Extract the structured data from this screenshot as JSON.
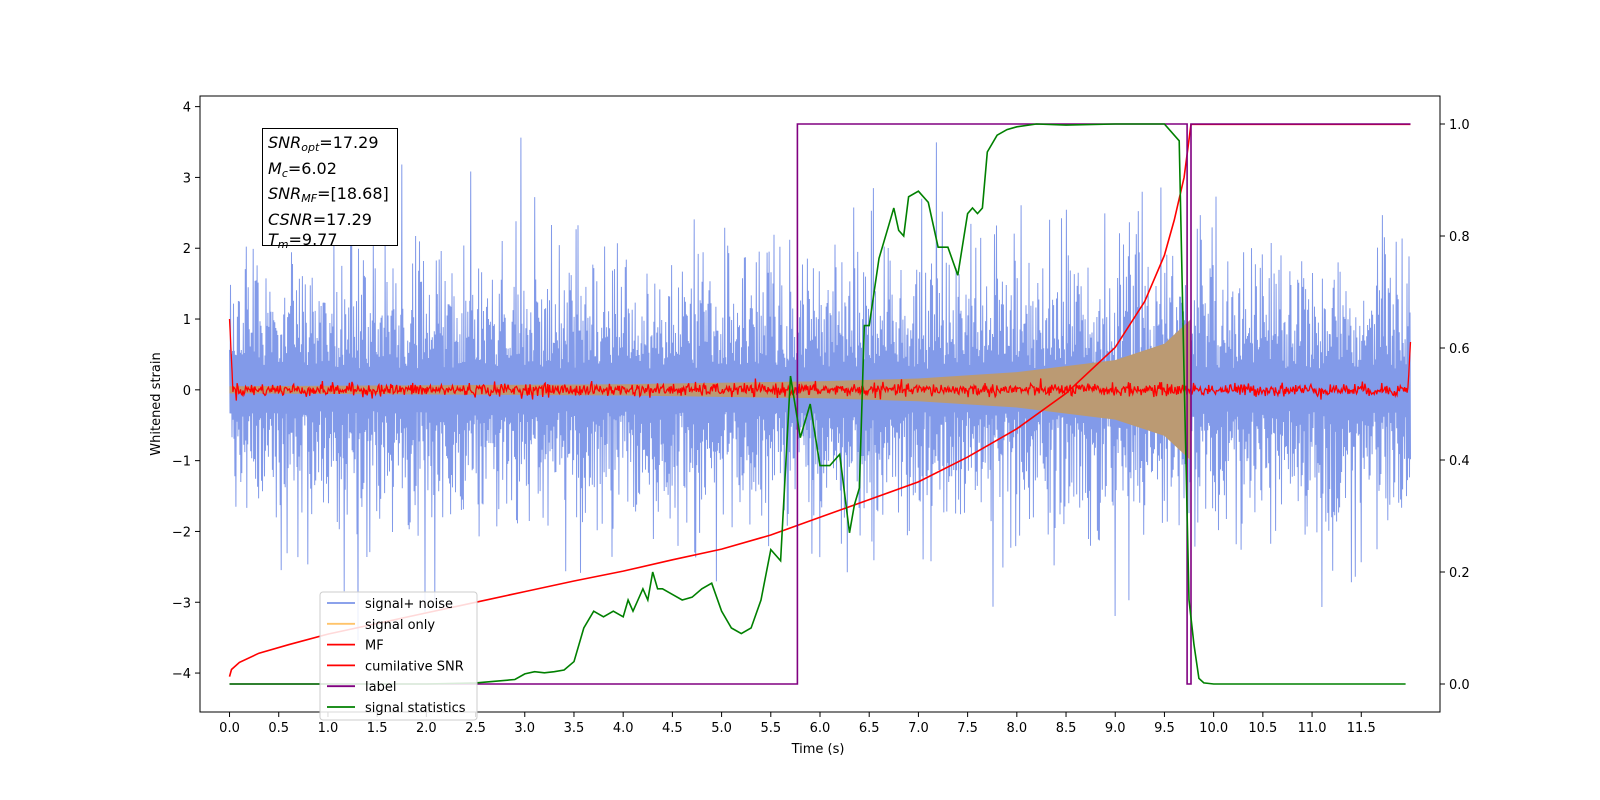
{
  "chart_data": {
    "type": "line",
    "xlabel": "Time (s)",
    "ylabel": "Whitened strain",
    "x_ticks": [
      "0.0",
      "0.5",
      "1.0",
      "1.5",
      "2.0",
      "2.5",
      "3.0",
      "3.5",
      "4.0",
      "4.5",
      "5.0",
      "5.5",
      "6.0",
      "6.5",
      "7.0",
      "7.5",
      "8.0",
      "8.5",
      "9.0",
      "9.5",
      "10.0",
      "10.5",
      "11.0",
      "11.5"
    ],
    "y_left_ticks": [
      "4",
      "3",
      "2",
      "1",
      "0",
      "−1",
      "−2",
      "−3",
      "−4"
    ],
    "y_right_ticks": [
      "1.0",
      "0.8",
      "0.6",
      "0.4",
      "0.2",
      "0.0"
    ],
    "xlim": [
      -0.3,
      12.3
    ],
    "ylim_left": [
      -4.55,
      4.15
    ],
    "ylim_right": [
      -0.05,
      1.05
    ],
    "legend_position": "lower-left",
    "legend": [
      {
        "name": "signal+ noise",
        "color": "#7b95e8"
      },
      {
        "name": "signal only",
        "color": "#ffc46a"
      },
      {
        "name": "MF",
        "color": "#ff0000"
      },
      {
        "name": "cumilative SNR",
        "color": "#ff0000"
      },
      {
        "name": "label",
        "color": "#800080"
      },
      {
        "name": "signal statistics",
        "color": "#008000"
      }
    ],
    "annotations": {
      "snr_opt": {
        "label": "SNR",
        "sub": "opt",
        "value": "=17.29"
      },
      "mc": {
        "label": "M",
        "sub": "c",
        "value": "=6.02"
      },
      "snr_mf": {
        "label": "SNR",
        "sub": "MF",
        "value": "=[18.68]"
      },
      "csnr": {
        "label": "CSNR",
        "value": "=17.29"
      },
      "tm": {
        "label": "T",
        "sub": "m",
        "value": "=9.77"
      }
    },
    "series": [
      {
        "name": "signal+ noise",
        "axis": "left",
        "description_type": "noise",
        "x_range": [
          0.0,
          12.0
        ],
        "typical_amplitude": [
          -1.9,
          2.3
        ],
        "peak_max": 3.75,
        "peak_min": -3.6
      },
      {
        "name": "signal only",
        "axis": "left",
        "description_type": "chirp_envelope",
        "x_range": [
          0.0,
          9.77
        ],
        "amplitude_points": [
          [
            0.0,
            0.05
          ],
          [
            4.0,
            0.08
          ],
          [
            6.0,
            0.12
          ],
          [
            7.0,
            0.16
          ],
          [
            8.0,
            0.25
          ],
          [
            9.0,
            0.42
          ],
          [
            9.5,
            0.65
          ],
          [
            9.77,
            1.0
          ]
        ]
      },
      {
        "name": "MF",
        "axis": "left",
        "description_type": "noise_small",
        "x_range": [
          0.0,
          12.0
        ],
        "typical_amplitude": [
          -0.12,
          0.15
        ],
        "edge_spikes": [
          [
            0.0,
            1.0
          ],
          [
            12.0,
            0.9
          ]
        ]
      },
      {
        "name": "cumilative SNR",
        "axis": "left",
        "x": [
          0.0,
          0.02,
          0.1,
          0.3,
          0.6,
          1.0,
          1.5,
          2.0,
          2.5,
          3.0,
          3.5,
          4.0,
          4.5,
          5.0,
          5.5,
          6.0,
          6.5,
          7.0,
          7.5,
          8.0,
          8.5,
          9.0,
          9.3,
          9.5,
          9.6,
          9.7,
          9.77,
          12.0
        ],
        "y": [
          -4.05,
          -3.95,
          -3.85,
          -3.72,
          -3.6,
          -3.45,
          -3.3,
          -3.15,
          -3.0,
          -2.85,
          -2.7,
          -2.56,
          -2.4,
          -2.25,
          -2.05,
          -1.8,
          -1.55,
          -1.3,
          -0.95,
          -0.55,
          -0.05,
          0.6,
          1.25,
          1.9,
          2.4,
          3.0,
          3.75,
          3.75
        ]
      },
      {
        "name": "label",
        "axis": "right",
        "x": [
          0.0,
          5.77,
          5.77,
          9.73,
          9.73,
          9.77,
          9.77,
          12.0
        ],
        "y": [
          0.0,
          0.0,
          1.0,
          1.0,
          0.0,
          0.0,
          1.0,
          1.0
        ]
      },
      {
        "name": "signal statistics",
        "axis": "right",
        "x": [
          0.0,
          1.0,
          2.0,
          2.5,
          2.9,
          3.0,
          3.1,
          3.2,
          3.3,
          3.4,
          3.5,
          3.6,
          3.7,
          3.8,
          3.9,
          4.0,
          4.05,
          4.1,
          4.2,
          4.25,
          4.3,
          4.35,
          4.4,
          4.5,
          4.6,
          4.7,
          4.8,
          4.9,
          5.0,
          5.1,
          5.2,
          5.3,
          5.4,
          5.5,
          5.6,
          5.7,
          5.8,
          5.9,
          6.0,
          6.1,
          6.2,
          6.3,
          6.35,
          6.4,
          6.45,
          6.5,
          6.6,
          6.7,
          6.75,
          6.8,
          6.85,
          6.9,
          7.0,
          7.1,
          7.2,
          7.3,
          7.4,
          7.5,
          7.55,
          7.6,
          7.65,
          7.7,
          7.8,
          7.9,
          8.0,
          8.2,
          8.5,
          9.0,
          9.5,
          9.65,
          9.7,
          9.75,
          9.8,
          9.85,
          9.9,
          10.0,
          10.5,
          11.0,
          11.5,
          11.95
        ],
        "y": [
          0.0,
          0.0,
          0.0,
          0.002,
          0.008,
          0.018,
          0.022,
          0.02,
          0.022,
          0.025,
          0.04,
          0.1,
          0.13,
          0.12,
          0.13,
          0.12,
          0.15,
          0.13,
          0.17,
          0.15,
          0.2,
          0.17,
          0.17,
          0.16,
          0.15,
          0.155,
          0.17,
          0.18,
          0.13,
          0.1,
          0.09,
          0.1,
          0.15,
          0.24,
          0.22,
          0.55,
          0.44,
          0.5,
          0.39,
          0.39,
          0.41,
          0.27,
          0.32,
          0.35,
          0.64,
          0.64,
          0.76,
          0.82,
          0.85,
          0.81,
          0.8,
          0.87,
          0.88,
          0.86,
          0.78,
          0.78,
          0.73,
          0.84,
          0.85,
          0.84,
          0.85,
          0.95,
          0.98,
          0.99,
          0.995,
          1.0,
          0.998,
          1.0,
          1.0,
          0.97,
          0.55,
          0.15,
          0.07,
          0.01,
          0.002,
          0.0,
          0.0,
          0.0,
          0.0,
          0.0
        ]
      }
    ]
  }
}
